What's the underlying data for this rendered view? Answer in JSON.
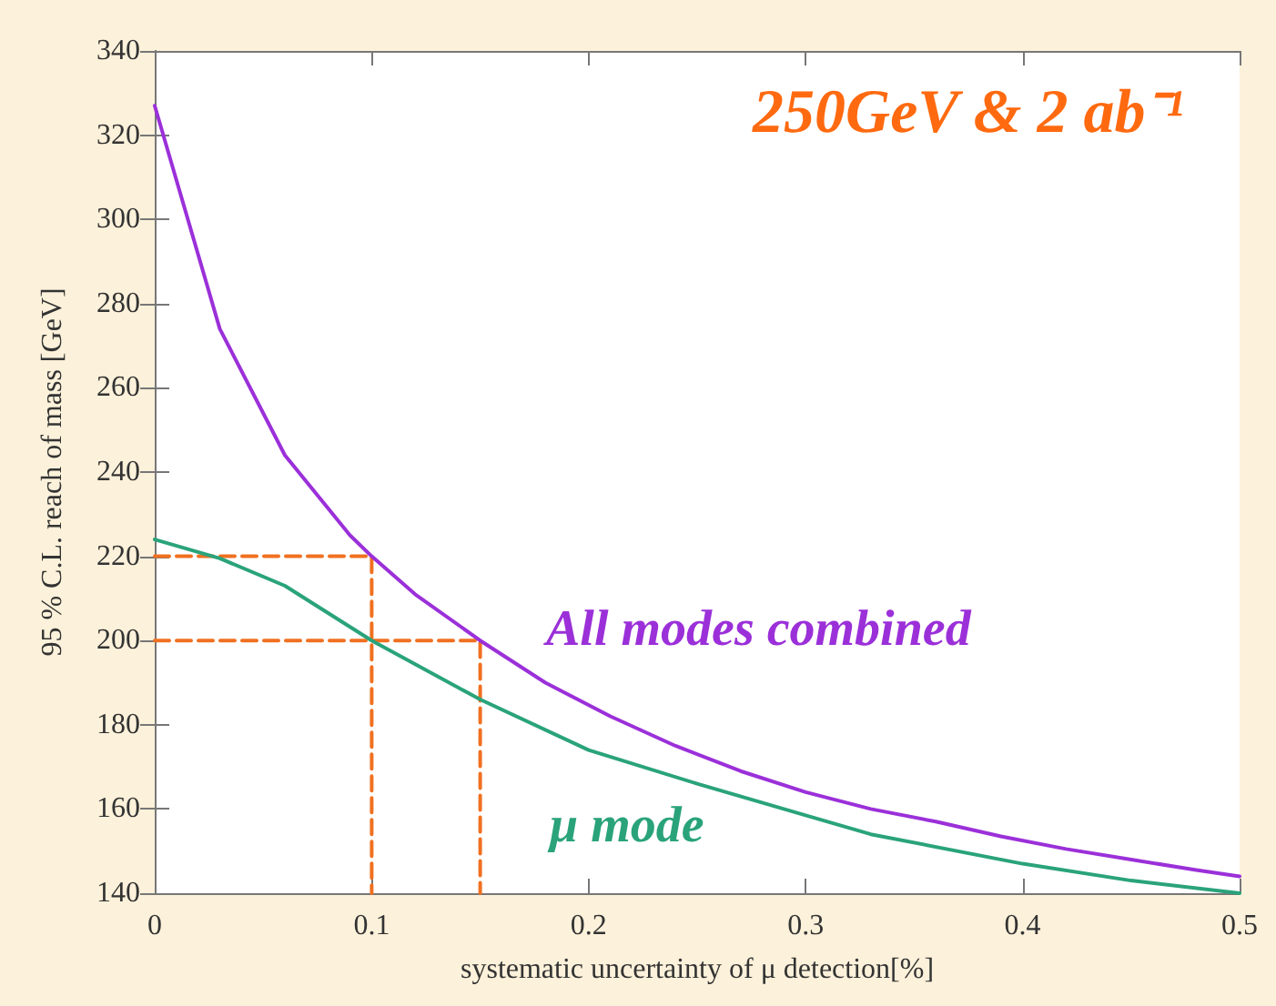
{
  "chart_data": {
    "type": "line",
    "xlabel": "systematic uncertainty of μ detection[%]",
    "ylabel": "95 % C.L. reach of mass [GeV]",
    "annotations": [
      "250GeV & 2 ab⁻¹"
    ],
    "xlim": [
      0,
      0.5
    ],
    "xticks": [
      0,
      0.1,
      0.2,
      0.3,
      0.4,
      0.5
    ],
    "ylim": [
      140,
      340
    ],
    "yticks": [
      140,
      160,
      180,
      200,
      220,
      240,
      260,
      280,
      300,
      320,
      340
    ],
    "grid": false,
    "legend": false,
    "marker": "none",
    "series": [
      {
        "name": "All modes combined",
        "color": "#9b30d9",
        "x": [
          0,
          0.03,
          0.06,
          0.09,
          0.1,
          0.12,
          0.15,
          0.18,
          0.21,
          0.24,
          0.27,
          0.3,
          0.33,
          0.36,
          0.39,
          0.42,
          0.45,
          0.48,
          0.5
        ],
        "values": [
          327,
          274,
          244,
          225,
          220,
          211,
          200,
          190,
          182,
          175,
          169,
          164,
          160,
          157,
          153.5,
          150.5,
          148,
          145.5,
          144
        ]
      },
      {
        "name": "μ mode",
        "color": "#2aa37a",
        "x": [
          0,
          0.03,
          0.06,
          0.1,
          0.15,
          0.2,
          0.25,
          0.3,
          0.33,
          0.4,
          0.45,
          0.5
        ],
        "values": [
          224,
          219.5,
          213,
          200,
          186,
          174,
          166,
          158.5,
          154,
          147,
          143,
          140
        ]
      },
      {
        "color": "#f07020",
        "line_style": "dashed",
        "x": [
          0,
          0.1,
          0.1
        ],
        "values": [
          220,
          220,
          140
        ]
      },
      {
        "color": "#f07020",
        "line_style": "dashed",
        "x": [
          0,
          0.15,
          0.15
        ],
        "values": [
          200,
          200,
          140
        ]
      }
    ]
  }
}
